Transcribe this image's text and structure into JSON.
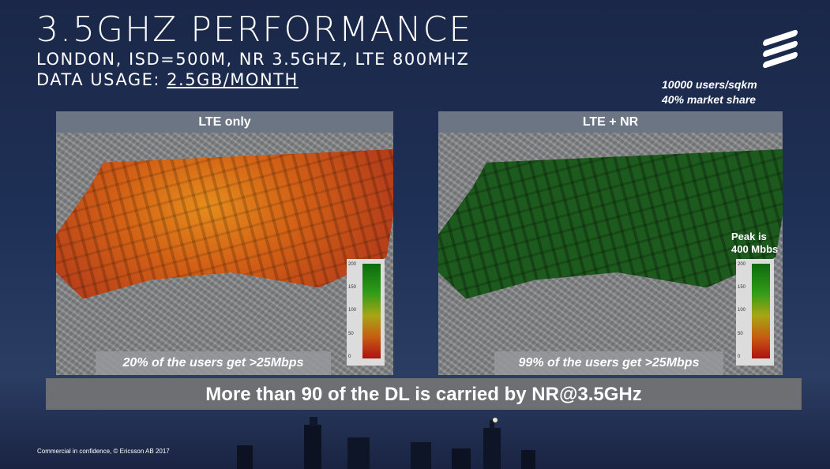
{
  "header": {
    "title": "3.5GHZ PERFORMANCE",
    "subtitle_line1": "LONDON, ISD=500M, NR 3.5GHZ, LTE 800MHZ",
    "subtitle_line2_prefix": "DATA USAGE: ",
    "subtitle_line2_value": "2.5GB/MONTH"
  },
  "stats": {
    "density": "10000 users/sqkm",
    "market_share": "40% market share"
  },
  "panels": [
    {
      "title": "LTE only",
      "caption": "20% of the users get >25Mbps",
      "legend_ticks": [
        "200",
        "150",
        "100",
        "50",
        "0"
      ]
    },
    {
      "title": "LTE + NR",
      "caption": "99% of the users get >25Mbps",
      "legend_ticks": [
        "200",
        "150",
        "100",
        "50",
        "0"
      ]
    }
  ],
  "peak_note": {
    "line1": "Peak is",
    "line2": "400 Mbbs"
  },
  "banner": "More than 90 of the DL is carried by NR@3.5GHz",
  "footer": "Commercial in confidence, © Ericsson AB 2017",
  "colors": {
    "background": "#1f3056",
    "lte_heat": "#d26016",
    "nr_heat": "#1d5a1d",
    "banner": "#6d6f72"
  },
  "icons": [
    "ericsson-logo-icon"
  ]
}
